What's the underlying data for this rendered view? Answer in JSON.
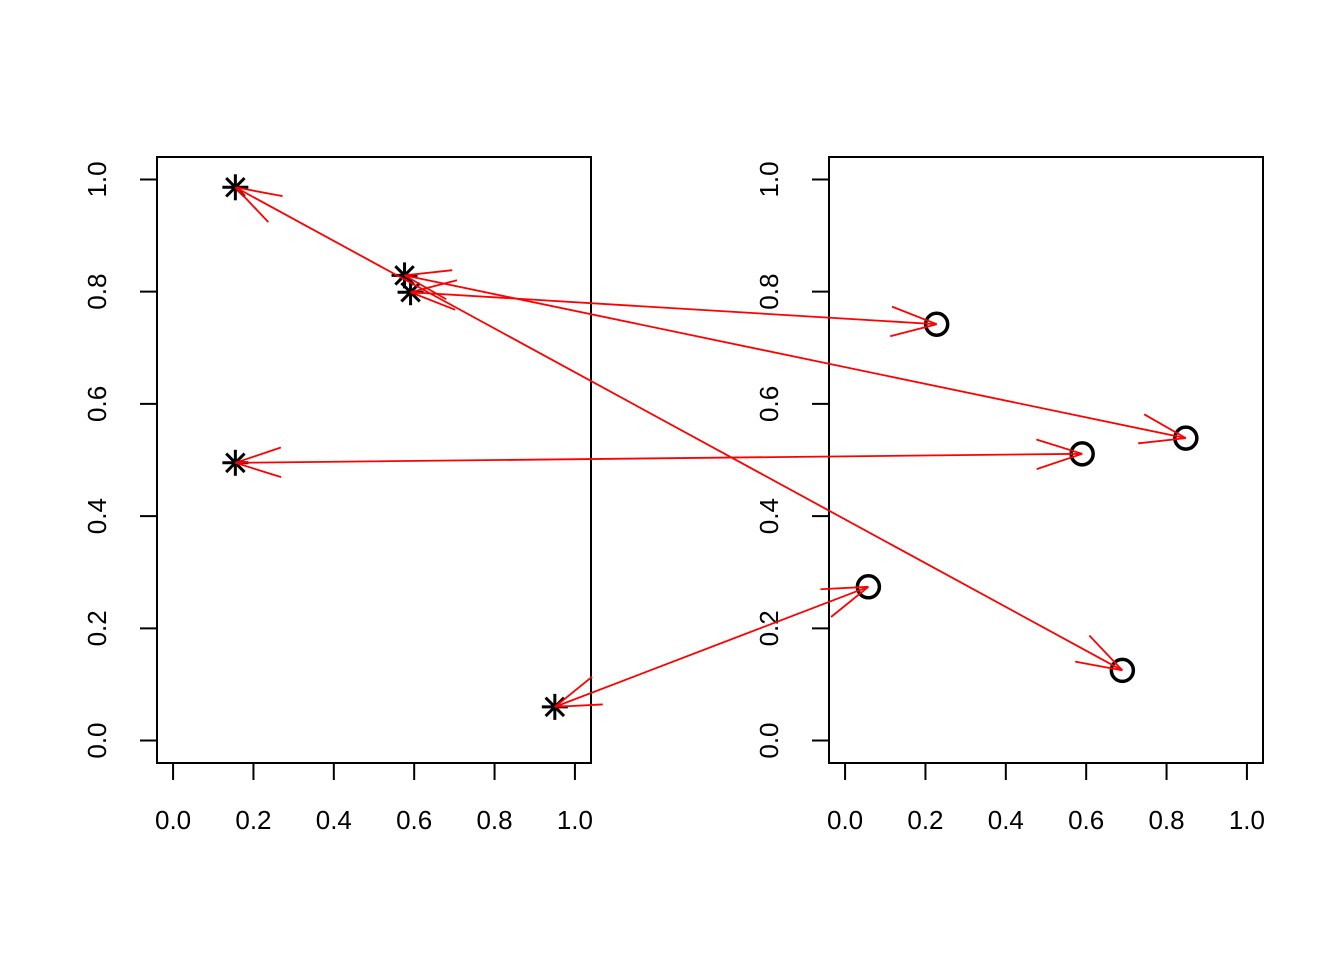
{
  "chart_data": [
    {
      "type": "scatter",
      "marker": "asterisk",
      "color": "#000000",
      "x": [
        0.155,
        0.576,
        0.591,
        0.155,
        0.95
      ],
      "y": [
        0.986,
        0.829,
        0.799,
        0.495,
        0.06
      ],
      "xlim": [
        -0.04,
        1.04
      ],
      "ylim": [
        -0.04,
        1.04
      ],
      "xticks": [
        {
          "value": 0,
          "label": "0.0"
        },
        0.2,
        0.4,
        0.6,
        0.8,
        {
          "value": 1,
          "label": "1.0"
        }
      ],
      "yticks": [
        {
          "value": 0,
          "label": "0.0"
        },
        0.2,
        0.4,
        0.6,
        0.8,
        {
          "value": 1,
          "label": "1.0"
        }
      ]
    },
    {
      "type": "scatter",
      "marker": "circle",
      "color": "#000000",
      "x": [
        0.228,
        0.848,
        0.59,
        0.058,
        0.69
      ],
      "y": [
        0.742,
        0.539,
        0.511,
        0.274,
        0.125
      ],
      "xlim": [
        -0.04,
        1.04
      ],
      "ylim": [
        -0.04,
        1.04
      ],
      "xticks": [
        {
          "value": 0,
          "label": "0.0"
        },
        0.2,
        0.4,
        0.6,
        0.8,
        {
          "value": 1,
          "label": "1.0"
        }
      ],
      "yticks": [
        {
          "value": 0,
          "label": "0.0"
        },
        0.2,
        0.4,
        0.6,
        0.8,
        {
          "value": 1,
          "label": "1.0"
        }
      ]
    }
  ],
  "arrows": {
    "color": "#ff0000",
    "pairs": [
      [
        0,
        4
      ],
      [
        1,
        1
      ],
      [
        2,
        0
      ],
      [
        3,
        2
      ],
      [
        4,
        3
      ]
    ]
  }
}
